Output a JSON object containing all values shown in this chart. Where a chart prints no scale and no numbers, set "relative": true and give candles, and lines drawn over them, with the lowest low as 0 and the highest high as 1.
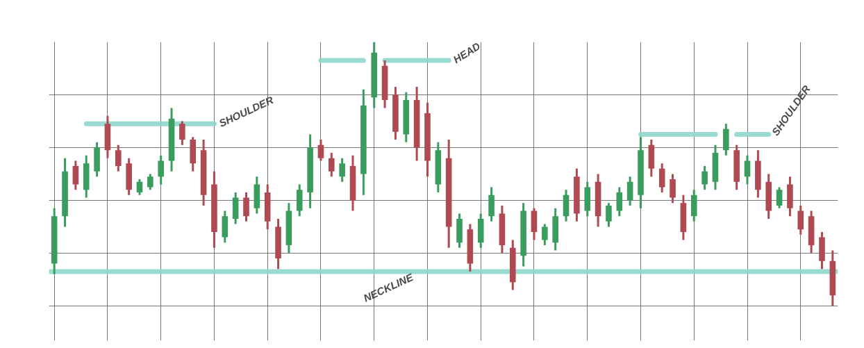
{
  "chart_data": {
    "type": "candlestick",
    "relative": true,
    "grid": true,
    "categories": [
      null,
      null,
      null,
      null,
      null,
      null,
      null,
      null,
      null,
      null,
      null,
      null,
      null,
      null,
      null,
      null,
      null,
      null,
      null,
      null,
      null,
      null,
      null,
      null,
      null,
      null,
      null,
      null,
      null,
      null,
      null,
      null,
      null,
      null,
      null,
      null,
      null,
      null,
      null,
      null,
      null,
      null,
      null,
      null,
      null,
      null,
      null,
      null,
      null,
      null,
      null,
      null,
      null,
      null,
      null,
      null,
      null,
      null,
      null,
      null,
      null,
      null,
      null,
      null,
      null,
      null,
      null,
      null,
      null,
      null,
      null,
      null,
      null,
      null
    ],
    "ohlc": [
      [
        0.16,
        0.37,
        0.12,
        0.34
      ],
      [
        0.34,
        0.56,
        0.3,
        0.51
      ],
      [
        0.53,
        0.55,
        0.44,
        0.46
      ],
      [
        0.44,
        0.57,
        0.41,
        0.54
      ],
      [
        0.51,
        0.62,
        0.49,
        0.6
      ],
      [
        0.69,
        0.72,
        0.56,
        0.59
      ],
      [
        0.59,
        0.61,
        0.51,
        0.53
      ],
      [
        0.54,
        0.56,
        0.42,
        0.44
      ],
      [
        0.43,
        0.48,
        0.42,
        0.47
      ],
      [
        0.45,
        0.5,
        0.44,
        0.49
      ],
      [
        0.49,
        0.57,
        0.46,
        0.55
      ],
      [
        0.55,
        0.75,
        0.51,
        0.71
      ],
      [
        0.69,
        0.7,
        0.61,
        0.63
      ],
      [
        0.63,
        0.64,
        0.51,
        0.54
      ],
      [
        0.59,
        0.63,
        0.38,
        0.42
      ],
      [
        0.46,
        0.51,
        0.22,
        0.28
      ],
      [
        0.26,
        0.36,
        0.24,
        0.34
      ],
      [
        0.33,
        0.43,
        0.31,
        0.41
      ],
      [
        0.41,
        0.43,
        0.32,
        0.34
      ],
      [
        0.37,
        0.49,
        0.35,
        0.46
      ],
      [
        0.43,
        0.46,
        0.29,
        0.32
      ],
      [
        0.3,
        0.33,
        0.14,
        0.18
      ],
      [
        0.23,
        0.39,
        0.2,
        0.36
      ],
      [
        0.36,
        0.46,
        0.34,
        0.44
      ],
      [
        0.43,
        0.65,
        0.37,
        0.6
      ],
      [
        0.61,
        0.63,
        0.55,
        0.56
      ],
      [
        0.56,
        0.58,
        0.49,
        0.51
      ],
      [
        0.49,
        0.56,
        0.47,
        0.54
      ],
      [
        0.53,
        0.57,
        0.36,
        0.4
      ],
      [
        0.5,
        0.82,
        0.42,
        0.76
      ],
      [
        0.79,
        1.0,
        0.75,
        0.96
      ],
      [
        0.91,
        0.93,
        0.75,
        0.78
      ],
      [
        0.8,
        0.83,
        0.63,
        0.66
      ],
      [
        0.65,
        0.81,
        0.62,
        0.78
      ],
      [
        0.78,
        0.83,
        0.55,
        0.6
      ],
      [
        0.73,
        0.77,
        0.49,
        0.55
      ],
      [
        0.46,
        0.62,
        0.43,
        0.59
      ],
      [
        0.56,
        0.63,
        0.22,
        0.3
      ],
      [
        0.24,
        0.35,
        0.22,
        0.33
      ],
      [
        0.29,
        0.31,
        0.13,
        0.16
      ],
      [
        0.24,
        0.35,
        0.22,
        0.33
      ],
      [
        0.34,
        0.45,
        0.32,
        0.42
      ],
      [
        0.35,
        0.38,
        0.2,
        0.23
      ],
      [
        0.22,
        0.25,
        0.06,
        0.09
      ],
      [
        0.19,
        0.39,
        0.15,
        0.36
      ],
      [
        0.36,
        0.37,
        0.25,
        0.28
      ],
      [
        0.25,
        0.31,
        0.23,
        0.3
      ],
      [
        0.24,
        0.37,
        0.21,
        0.34
      ],
      [
        0.34,
        0.44,
        0.32,
        0.42
      ],
      [
        0.49,
        0.52,
        0.32,
        0.35
      ],
      [
        0.36,
        0.47,
        0.34,
        0.45
      ],
      [
        0.47,
        0.5,
        0.3,
        0.34
      ],
      [
        0.32,
        0.39,
        0.3,
        0.38
      ],
      [
        0.36,
        0.45,
        0.34,
        0.43
      ],
      [
        0.4,
        0.49,
        0.38,
        0.47
      ],
      [
        0.42,
        0.64,
        0.37,
        0.59
      ],
      [
        0.61,
        0.63,
        0.49,
        0.52
      ],
      [
        0.52,
        0.54,
        0.43,
        0.45
      ],
      [
        0.48,
        0.5,
        0.39,
        0.41
      ],
      [
        0.39,
        0.42,
        0.25,
        0.28
      ],
      [
        0.34,
        0.44,
        0.32,
        0.42
      ],
      [
        0.46,
        0.53,
        0.44,
        0.51
      ],
      [
        0.47,
        0.61,
        0.44,
        0.58
      ],
      [
        0.59,
        0.69,
        0.57,
        0.67
      ],
      [
        0.59,
        0.61,
        0.44,
        0.47
      ],
      [
        0.49,
        0.57,
        0.46,
        0.55
      ],
      [
        0.55,
        0.59,
        0.41,
        0.44
      ],
      [
        0.47,
        0.5,
        0.33,
        0.36
      ],
      [
        0.38,
        0.45,
        0.37,
        0.44
      ],
      [
        0.46,
        0.49,
        0.34,
        0.37
      ],
      [
        0.36,
        0.38,
        0.27,
        0.29
      ],
      [
        0.34,
        0.36,
        0.2,
        0.23
      ],
      [
        0.26,
        0.28,
        0.14,
        0.17
      ],
      [
        0.17,
        0.21,
        0.0,
        0.04
      ]
    ],
    "colors": [
      "#3a9d5d",
      "#3a9d5d",
      "#b04a52",
      "#3a9d5d",
      "#3a9d5d",
      "#b04a52",
      "#b04a52",
      "#b04a52",
      "#3a9d5d",
      "#3a9d5d",
      "#3a9d5d",
      "#3a9d5d",
      "#b04a52",
      "#b04a52",
      "#b04a52",
      "#b04a52",
      "#3a9d5d",
      "#3a9d5d",
      "#b04a52",
      "#3a9d5d",
      "#b04a52",
      "#b04a52",
      "#3a9d5d",
      "#3a9d5d",
      "#3a9d5d",
      "#b04a52",
      "#b04a52",
      "#3a9d5d",
      "#b04a52",
      "#3a9d5d",
      "#3a9d5d",
      "#b04a52",
      "#b04a52",
      "#3a9d5d",
      "#b04a52",
      "#b04a52",
      "#3a9d5d",
      "#b04a52",
      "#3a9d5d",
      "#b04a52",
      "#3a9d5d",
      "#3a9d5d",
      "#b04a52",
      "#b04a52",
      "#3a9d5d",
      "#b04a52",
      "#3a9d5d",
      "#3a9d5d",
      "#3a9d5d",
      "#b04a52",
      "#3a9d5d",
      "#b04a52",
      "#3a9d5d",
      "#3a9d5d",
      "#3a9d5d",
      "#3a9d5d",
      "#b04a52",
      "#b04a52",
      "#b04a52",
      "#b04a52",
      "#3a9d5d",
      "#3a9d5d",
      "#3a9d5d",
      "#3a9d5d",
      "#b04a52",
      "#3a9d5d",
      "#b04a52",
      "#b04a52",
      "#3a9d5d",
      "#b04a52",
      "#b04a52",
      "#b04a52",
      "#b04a52",
      "#b04a52"
    ],
    "series": [
      {
        "type": "line",
        "name": "SHOULDER",
        "color": "#8fd6cb",
        "values": [
          null,
          null,
          null,
          0.69,
          0.69,
          0.69,
          0.69,
          0.69,
          0.69,
          0.69,
          0.69,
          0.69,
          0.69,
          0.69,
          0.69,
          0.69,
          null,
          null,
          null,
          null,
          null,
          null,
          null,
          null,
          null,
          null,
          null,
          null,
          null,
          null,
          null,
          null,
          null,
          null,
          null,
          null,
          null,
          null,
          null,
          null,
          null,
          null,
          null,
          null,
          null,
          null,
          null,
          null,
          null,
          null,
          null,
          null,
          null,
          null,
          null,
          null,
          null,
          null,
          null,
          null,
          null,
          null,
          null,
          null,
          null,
          null,
          null,
          null,
          null,
          null,
          null,
          null,
          null,
          null
        ]
      },
      {
        "type": "line",
        "name": "HEAD",
        "color": "#8fd6cb",
        "values": [
          null,
          null,
          null,
          null,
          null,
          null,
          null,
          null,
          null,
          null,
          null,
          null,
          null,
          null,
          null,
          null,
          null,
          null,
          null,
          null,
          null,
          null,
          null,
          null,
          null,
          0.93,
          0.93,
          0.93,
          0.93,
          0.93,
          null,
          0.93,
          0.93,
          0.93,
          0.93,
          0.93,
          0.93,
          0.93,
          null,
          null,
          null,
          null,
          null,
          null,
          null,
          null,
          null,
          null,
          null,
          null,
          null,
          null,
          null,
          null,
          null,
          null,
          null,
          null,
          null,
          null,
          null,
          null,
          null,
          null,
          null,
          null,
          null,
          null,
          null,
          null,
          null,
          null,
          null,
          null
        ]
      },
      {
        "type": "line",
        "name": "SHOULDER",
        "color": "#8fd6cb",
        "values": [
          null,
          null,
          null,
          null,
          null,
          null,
          null,
          null,
          null,
          null,
          null,
          null,
          null,
          null,
          null,
          null,
          null,
          null,
          null,
          null,
          null,
          null,
          null,
          null,
          null,
          null,
          null,
          null,
          null,
          null,
          null,
          null,
          null,
          null,
          null,
          null,
          null,
          null,
          null,
          null,
          null,
          null,
          null,
          null,
          null,
          null,
          null,
          null,
          null,
          null,
          null,
          null,
          null,
          null,
          null,
          0.65,
          0.65,
          0.65,
          0.65,
          0.65,
          0.65,
          0.65,
          0.65,
          null,
          0.65,
          0.65,
          0.65,
          0.65,
          null,
          null,
          null,
          null,
          null,
          null
        ]
      }
    ],
    "ref_lines": [
      {
        "axis": "y",
        "value": 0.13,
        "label": "NECKLINE",
        "color": "#8fd6cb"
      }
    ]
  }
}
